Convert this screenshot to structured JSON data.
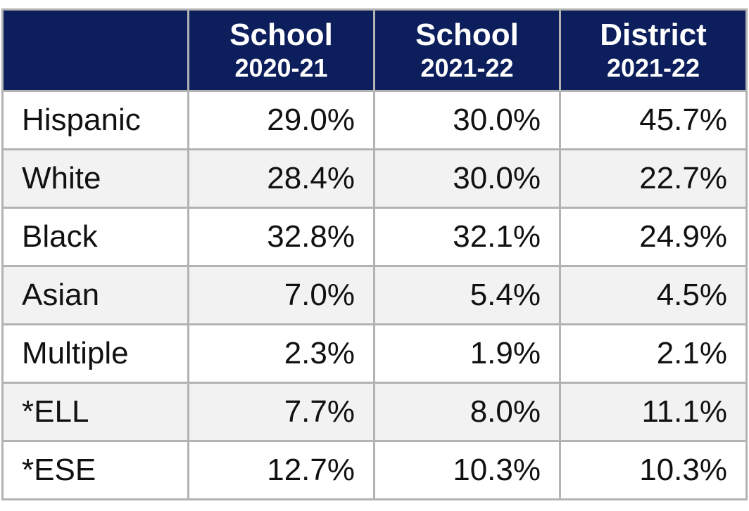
{
  "table": {
    "columns": [
      {
        "title": "School",
        "subtitle": "2020-21"
      },
      {
        "title": "School",
        "subtitle": "2021-22"
      },
      {
        "title": "District",
        "subtitle": "2021-22"
      }
    ],
    "rows": [
      {
        "label": "Hispanic",
        "cells": [
          "29.0%",
          "30.0%",
          "45.7%"
        ]
      },
      {
        "label": "White",
        "cells": [
          "28.4%",
          "30.0%",
          "22.7%"
        ]
      },
      {
        "label": "Black",
        "cells": [
          "32.8%",
          "32.1%",
          "24.9%"
        ]
      },
      {
        "label": "Asian",
        "cells": [
          "7.0%",
          "5.4%",
          "4.5%"
        ]
      },
      {
        "label": "Multiple",
        "cells": [
          "2.3%",
          "1.9%",
          "2.1%"
        ]
      },
      {
        "label": "*ELL",
        "cells": [
          "7.7%",
          "8.0%",
          "11.1%"
        ]
      },
      {
        "label": "*ESE",
        "cells": [
          "12.7%",
          "10.3%",
          "10.3%"
        ]
      }
    ]
  }
}
